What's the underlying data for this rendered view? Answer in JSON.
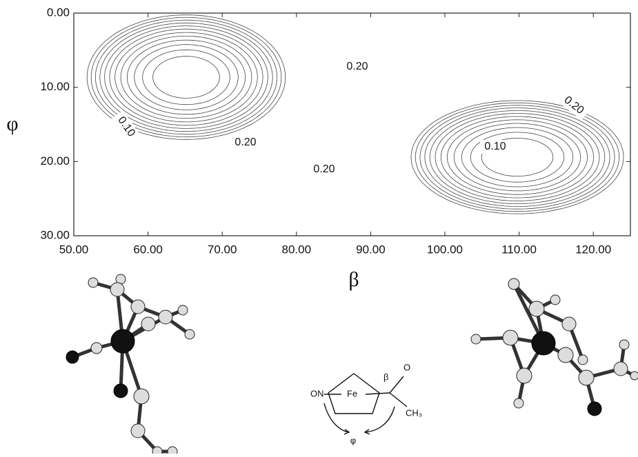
{
  "chart_data": {
    "type": "contour",
    "x_label": "β",
    "y_label": "φ",
    "xlim": [
      50,
      125
    ],
    "ylim": [
      0,
      30
    ],
    "xticks": [
      {
        "value": 50,
        "label": "50.00"
      },
      {
        "value": 60,
        "label": "60.00"
      },
      {
        "value": 70,
        "label": "70.00"
      },
      {
        "value": 80,
        "label": "80.00"
      },
      {
        "value": 90,
        "label": "90.00"
      },
      {
        "value": 100,
        "label": "100.00"
      },
      {
        "value": 110,
        "label": "110.00"
      },
      {
        "value": 120,
        "label": "120.00"
      }
    ],
    "yticks": [
      {
        "value": 0,
        "label": "0.00"
      },
      {
        "value": 10,
        "label": "10.00"
      },
      {
        "value": 20,
        "label": "20.00"
      },
      {
        "value": 30,
        "label": "30.00"
      }
    ],
    "contour_labels": [
      {
        "value": 0.2,
        "label": "0.20"
      },
      {
        "value": 0.2,
        "label": "0.20"
      },
      {
        "value": 0.1,
        "label": "0.10"
      },
      {
        "value": 0.2,
        "label": "0.20"
      },
      {
        "value": 0.1,
        "label": "0.10"
      },
      {
        "value": 0.2,
        "label": "0.20"
      }
    ],
    "color": "#444444"
  },
  "scheme": {
    "labels": [
      "ON",
      "Fe",
      "β",
      "O",
      "CH₃",
      "φ"
    ]
  }
}
